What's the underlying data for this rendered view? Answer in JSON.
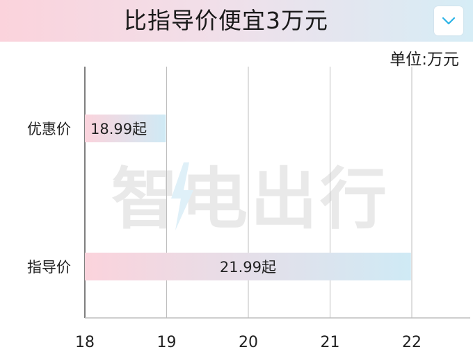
{
  "header": {
    "title": "比指导价便宜3万元"
  },
  "toolbar": {
    "dropdown_icon": "chevron-down-icon"
  },
  "unit_label": "单位:万元",
  "watermark": {
    "text": "智电出行"
  },
  "colors": {
    "bar_start": "#fbd3dc",
    "bar_end": "#cfeaf5",
    "grid": "#bdbdbd",
    "dropdown_accent": "#2ab3e6"
  },
  "chart_data": {
    "type": "bar",
    "orientation": "horizontal",
    "categories": [
      "优惠价",
      "指导价"
    ],
    "values": [
      18.99,
      21.99
    ],
    "data_labels": [
      "18.99起",
      "21.99起"
    ],
    "xlim": [
      18,
      22.7
    ],
    "x_ticks": [
      18,
      19,
      20,
      21,
      22
    ],
    "grid": true
  }
}
